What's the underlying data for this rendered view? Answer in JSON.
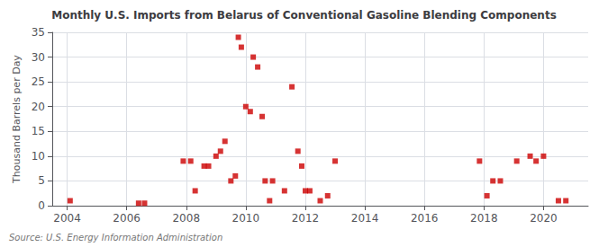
{
  "chart_data": {
    "type": "scatter",
    "title": "Monthly U.S. Imports from Belarus of Conventional Gasoline Blending Components",
    "ylabel": "Thousand Barrels per Day",
    "annotations": [
      "Source: U.S. Energy Information Administration"
    ],
    "color": "#cc0000",
    "marker": "square",
    "grid": true,
    "xlim": [
      2003.5,
      2021.5
    ],
    "xticks": [
      2004,
      2006,
      2008,
      2010,
      2012,
      2014,
      2016,
      2018,
      2020
    ],
    "ylim": [
      0,
      35
    ],
    "yticks": [
      0,
      5,
      10,
      15,
      20,
      25,
      30,
      35
    ],
    "x": [
      2004.1,
      2006.4,
      2006.6,
      2007.9,
      2008.15,
      2008.3,
      2008.6,
      2008.75,
      2009.0,
      2009.15,
      2009.3,
      2009.5,
      2009.65,
      2009.75,
      2009.85,
      2010.0,
      2010.15,
      2010.25,
      2010.4,
      2010.55,
      2010.65,
      2010.8,
      2010.9,
      2011.3,
      2011.55,
      2011.75,
      2011.88,
      2012.0,
      2012.15,
      2012.5,
      2012.75,
      2013.0,
      2017.85,
      2018.1,
      2018.3,
      2018.55,
      2019.1,
      2019.55,
      2019.75,
      2020.0,
      2020.5,
      2020.75
    ],
    "values": [
      1,
      0.5,
      0.5,
      9,
      9,
      3,
      8,
      8,
      10,
      11,
      13,
      5,
      6,
      34,
      32,
      20,
      19,
      30,
      28,
      18,
      5,
      1,
      5,
      3,
      24,
      11,
      8,
      3,
      3,
      1,
      2,
      9,
      9,
      2,
      5,
      5,
      9,
      10,
      9,
      10,
      1,
      1
    ]
  }
}
